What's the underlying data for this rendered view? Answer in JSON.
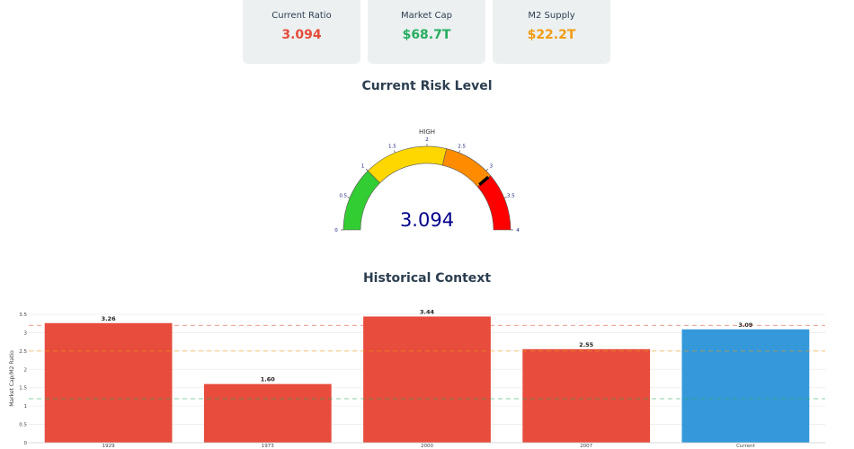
{
  "metrics": [
    {
      "label": "Current Ratio",
      "value": "3.094",
      "color": "#e74c3c"
    },
    {
      "label": "Market Cap",
      "value": "$68.7T",
      "color": "#27ae60"
    },
    {
      "label": "M2 Supply",
      "value": "$22.2T",
      "color": "#f39c12"
    }
  ],
  "risk_section": {
    "title": "Current Risk Level"
  },
  "gauge": {
    "level_label": "HIGH",
    "value_text": "3.094",
    "value": 3.094,
    "min": 0,
    "max": 4,
    "ticks": [
      "0",
      "0.5",
      "1",
      "1.5",
      "2",
      "2.5",
      "3",
      "3.5",
      "4"
    ],
    "bands": [
      {
        "from": 0,
        "to": 1,
        "color": "#32cd32"
      },
      {
        "from": 1,
        "to": 2.3,
        "color": "#ffd700"
      },
      {
        "from": 2.3,
        "to": 3.1,
        "color": "#ff8c00"
      },
      {
        "from": 3.1,
        "to": 4,
        "color": "#ff0000"
      }
    ],
    "value_color": "#00008b",
    "needle_color": "#000000"
  },
  "history_section": {
    "title": "Historical Context"
  },
  "chart_data": {
    "type": "bar",
    "categories": [
      "1929",
      "1973",
      "2000",
      "2007",
      "Current"
    ],
    "values": [
      3.26,
      1.6,
      3.44,
      2.55,
      3.09
    ],
    "value_labels": [
      "3.26",
      "1.60",
      "3.44",
      "2.55",
      "3.09"
    ],
    "colors": [
      "#e74c3c",
      "#e74c3c",
      "#e74c3c",
      "#e74c3c",
      "#3498db"
    ],
    "ylabel": "Market Cap/M2 Ratio",
    "xlabel": "",
    "ylim": [
      0,
      3.5
    ],
    "yticks": [
      "0",
      "0.5",
      "1",
      "1.5",
      "2",
      "2.5",
      "3",
      "3.5"
    ],
    "reference_lines": [
      {
        "value": 3.2,
        "color": "#e74c3c"
      },
      {
        "value": 2.5,
        "color": "#f39c12"
      },
      {
        "value": 1.2,
        "color": "#27ae60"
      }
    ],
    "grid": true
  }
}
